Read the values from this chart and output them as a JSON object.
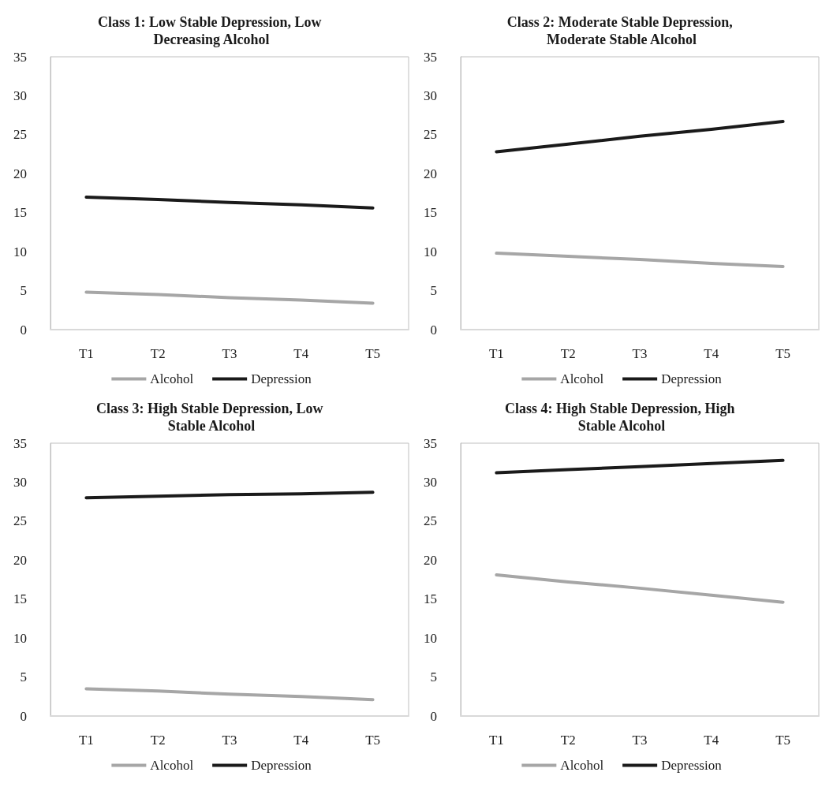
{
  "chart_data": [
    {
      "type": "line",
      "title": "Class 1: Low Stable Depression, Low Decreasing Alcohol",
      "categories": [
        "T1",
        "T2",
        "T3",
        "T4",
        "T5"
      ],
      "series": [
        {
          "name": "Alcohol",
          "color": "#a6a6a6",
          "values": [
            4.8,
            4.5,
            4.1,
            3.8,
            3.4
          ]
        },
        {
          "name": "Depression",
          "color": "#1a1a1a",
          "values": [
            17.0,
            16.7,
            16.3,
            16.0,
            15.6
          ]
        }
      ],
      "ylim": [
        0,
        35
      ],
      "yticks": [
        0,
        5,
        10,
        15,
        20,
        25,
        30,
        35
      ],
      "grid": false,
      "legend": "bottom",
      "marker": "none",
      "line_style": "solid"
    },
    {
      "type": "line",
      "title": "Class 2: Moderate Stable Depression, Moderate Stable Alcohol",
      "categories": [
        "T1",
        "T2",
        "T3",
        "T4",
        "T5"
      ],
      "series": [
        {
          "name": "Alcohol",
          "color": "#a6a6a6",
          "values": [
            9.8,
            9.4,
            9.0,
            8.5,
            8.1
          ]
        },
        {
          "name": "Depression",
          "color": "#1a1a1a",
          "values": [
            22.8,
            23.8,
            24.8,
            25.7,
            26.7
          ]
        }
      ],
      "ylim": [
        0,
        35
      ],
      "yticks": [
        0,
        5,
        10,
        15,
        20,
        25,
        30,
        35
      ],
      "grid": false,
      "legend": "bottom",
      "marker": "none",
      "line_style": "solid"
    },
    {
      "type": "line",
      "title": "Class 3: High Stable Depression, Low Stable Alcohol",
      "categories": [
        "T1",
        "T2",
        "T3",
        "T4",
        "T5"
      ],
      "series": [
        {
          "name": "Alcohol",
          "color": "#a6a6a6",
          "values": [
            3.5,
            3.2,
            2.8,
            2.5,
            2.1
          ]
        },
        {
          "name": "Depression",
          "color": "#1a1a1a",
          "values": [
            28.0,
            28.2,
            28.4,
            28.5,
            28.7
          ]
        }
      ],
      "ylim": [
        0,
        35
      ],
      "yticks": [
        0,
        5,
        10,
        15,
        20,
        25,
        30,
        35
      ],
      "grid": false,
      "legend": "bottom",
      "marker": "none",
      "line_style": "solid"
    },
    {
      "type": "line",
      "title": "Class 4: High Stable Depression, High Stable Alcohol",
      "categories": [
        "T1",
        "T2",
        "T3",
        "T4",
        "T5"
      ],
      "series": [
        {
          "name": "Alcohol",
          "color": "#a6a6a6",
          "values": [
            18.1,
            17.2,
            16.4,
            15.5,
            14.6
          ]
        },
        {
          "name": "Depression",
          "color": "#1a1a1a",
          "values": [
            31.2,
            31.6,
            32.0,
            32.4,
            32.8
          ]
        }
      ],
      "ylim": [
        0,
        35
      ],
      "yticks": [
        0,
        5,
        10,
        15,
        20,
        25,
        30,
        35
      ],
      "grid": false,
      "legend": "bottom",
      "marker": "none",
      "line_style": "solid"
    }
  ]
}
